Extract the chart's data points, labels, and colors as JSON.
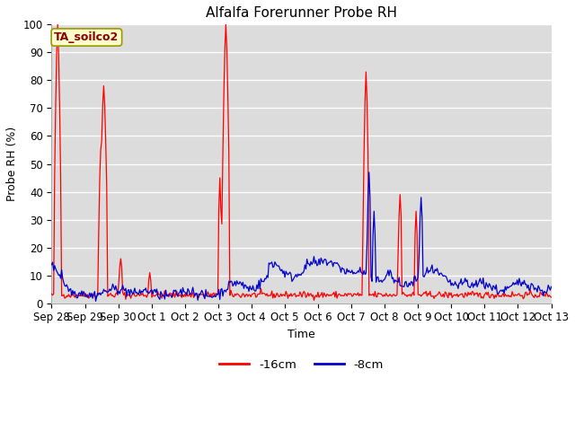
{
  "title": "Alfalfa Forerunner Probe RH",
  "ylabel": "Probe RH (%)",
  "xlabel": "Time",
  "annotation": "TA_soilco2",
  "ylim": [
    0,
    100
  ],
  "bg_color": "#dcdcdc",
  "grid_color": "#ffffff",
  "fig_color": "#ffffff",
  "line1_color": "#ff0000",
  "line2_color": "#0000cc",
  "legend_labels": [
    "-16cm",
    "-8cm"
  ],
  "xtick_labels": [
    "Sep 28",
    "Sep 29",
    "Sep 30",
    "Oct 1",
    "Oct 2",
    "Oct 3",
    "Oct 4",
    "Oct 5",
    "Oct 6",
    "Oct 7",
    "Oct 8",
    "Oct 9",
    "Oct 10",
    "Oct 11",
    "Oct 12",
    "Oct 13"
  ],
  "n_points": 500
}
